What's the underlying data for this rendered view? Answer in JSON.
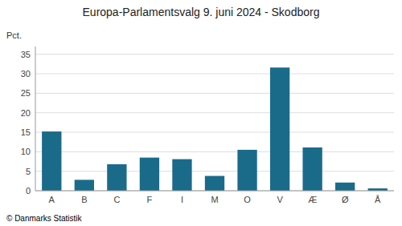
{
  "chart_data": {
    "type": "bar",
    "title": "Europa-Parlamentsvalg 9. juni 2024 - Skodborg",
    "y_label": "Pct.",
    "footer": "© Danmarks Statistik",
    "categories": [
      "A",
      "B",
      "C",
      "F",
      "I",
      "M",
      "O",
      "V",
      "Æ",
      "Ø",
      "Å"
    ],
    "values": [
      15.2,
      2.8,
      6.8,
      8.5,
      8.1,
      3.8,
      10.5,
      31.6,
      11.1,
      2.1,
      0.6
    ],
    "color": "#1a6b8a",
    "ylim": [
      0,
      37
    ],
    "yticks": [
      0,
      5,
      10,
      15,
      20,
      25,
      30,
      35
    ],
    "grid": true
  }
}
